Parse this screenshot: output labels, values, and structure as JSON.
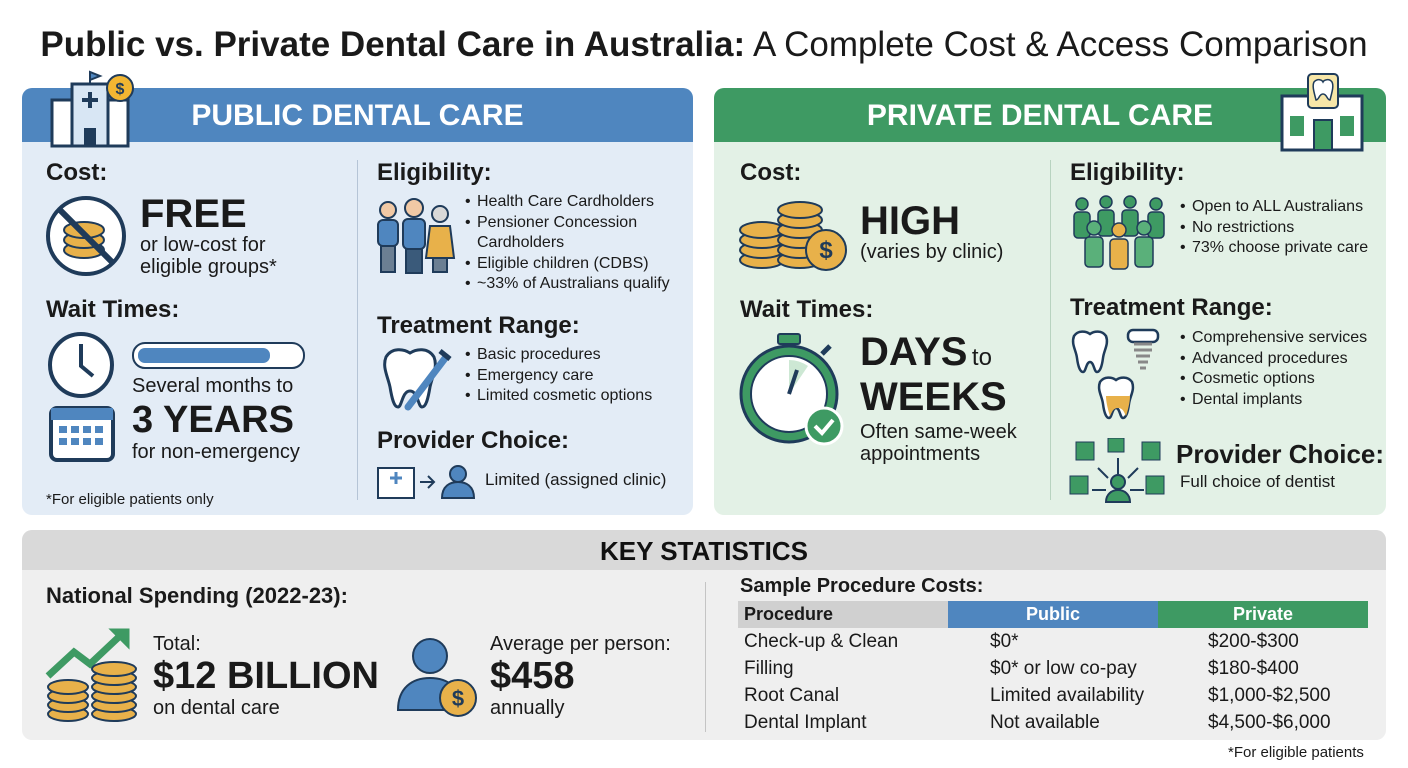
{
  "title": {
    "bold": "Public vs. Private Dental Care in Australia:",
    "rest": "A Complete Cost & Access Comparison"
  },
  "public": {
    "heading": "PUBLIC DENTAL CARE",
    "cost": {
      "label": "Cost:",
      "value": "FREE",
      "note": "or low-cost for eligible groups*"
    },
    "wait": {
      "label": "Wait Times:",
      "line1": "Several months to",
      "value": "3 YEARS",
      "line2": "for non-emergency"
    },
    "footnote": "*For eligible patients only",
    "eligibility": {
      "label": "Eligibility:",
      "items": [
        "Health Care Cardholders",
        "Pensioner Concession Cardholders",
        "Eligible children (CDBS)",
        "~33% of Australians qualify"
      ]
    },
    "treatment": {
      "label": "Treatment Range:",
      "items": [
        "Basic procedures",
        "Emergency care",
        "Limited cosmetic options"
      ]
    },
    "provider": {
      "label": "Provider Choice:",
      "text": "Limited (assigned clinic)"
    }
  },
  "private": {
    "heading": "PRIVATE DENTAL CARE",
    "cost": {
      "label": "Cost:",
      "value": "HIGH",
      "note": "(varies by clinic)"
    },
    "wait": {
      "label": "Wait Times:",
      "value1": "DAYS",
      "connector": "to",
      "value2": "WEEKS",
      "note": "Often same-week appointments"
    },
    "eligibility": {
      "label": "Eligibility:",
      "items": [
        "Open to ALL Australians",
        "No restrictions",
        "73% choose private care"
      ]
    },
    "treatment": {
      "label": "Treatment Range:",
      "items": [
        "Comprehensive services",
        "Advanced procedures",
        "Cosmetic options",
        "Dental implants"
      ]
    },
    "provider": {
      "label": "Provider Choice:",
      "text": "Full choice of dentist"
    }
  },
  "stats": {
    "heading": "KEY STATISTICS",
    "spending": {
      "label": "National Spending (2022-23):",
      "total": {
        "line1": "Total:",
        "value": "$12 BILLION",
        "line2": "on dental care"
      },
      "average": {
        "line1": "Average per person:",
        "value": "$458",
        "line2": "annually"
      }
    },
    "table": {
      "title": "Sample Procedure Costs:",
      "header": [
        "Procedure",
        "Public",
        "Private"
      ],
      "rows": [
        [
          "Check-up & Clean",
          "$0*",
          "$200-$300"
        ],
        [
          "Filling",
          "$0* or low co-pay",
          "$180-$400"
        ],
        [
          "Root Canal",
          "Limited availability",
          "$1,000-$2,500"
        ],
        [
          "Dental Implant",
          "Not available",
          "$4,500-$6,000"
        ]
      ],
      "footnote": "*For eligible patients"
    }
  }
}
